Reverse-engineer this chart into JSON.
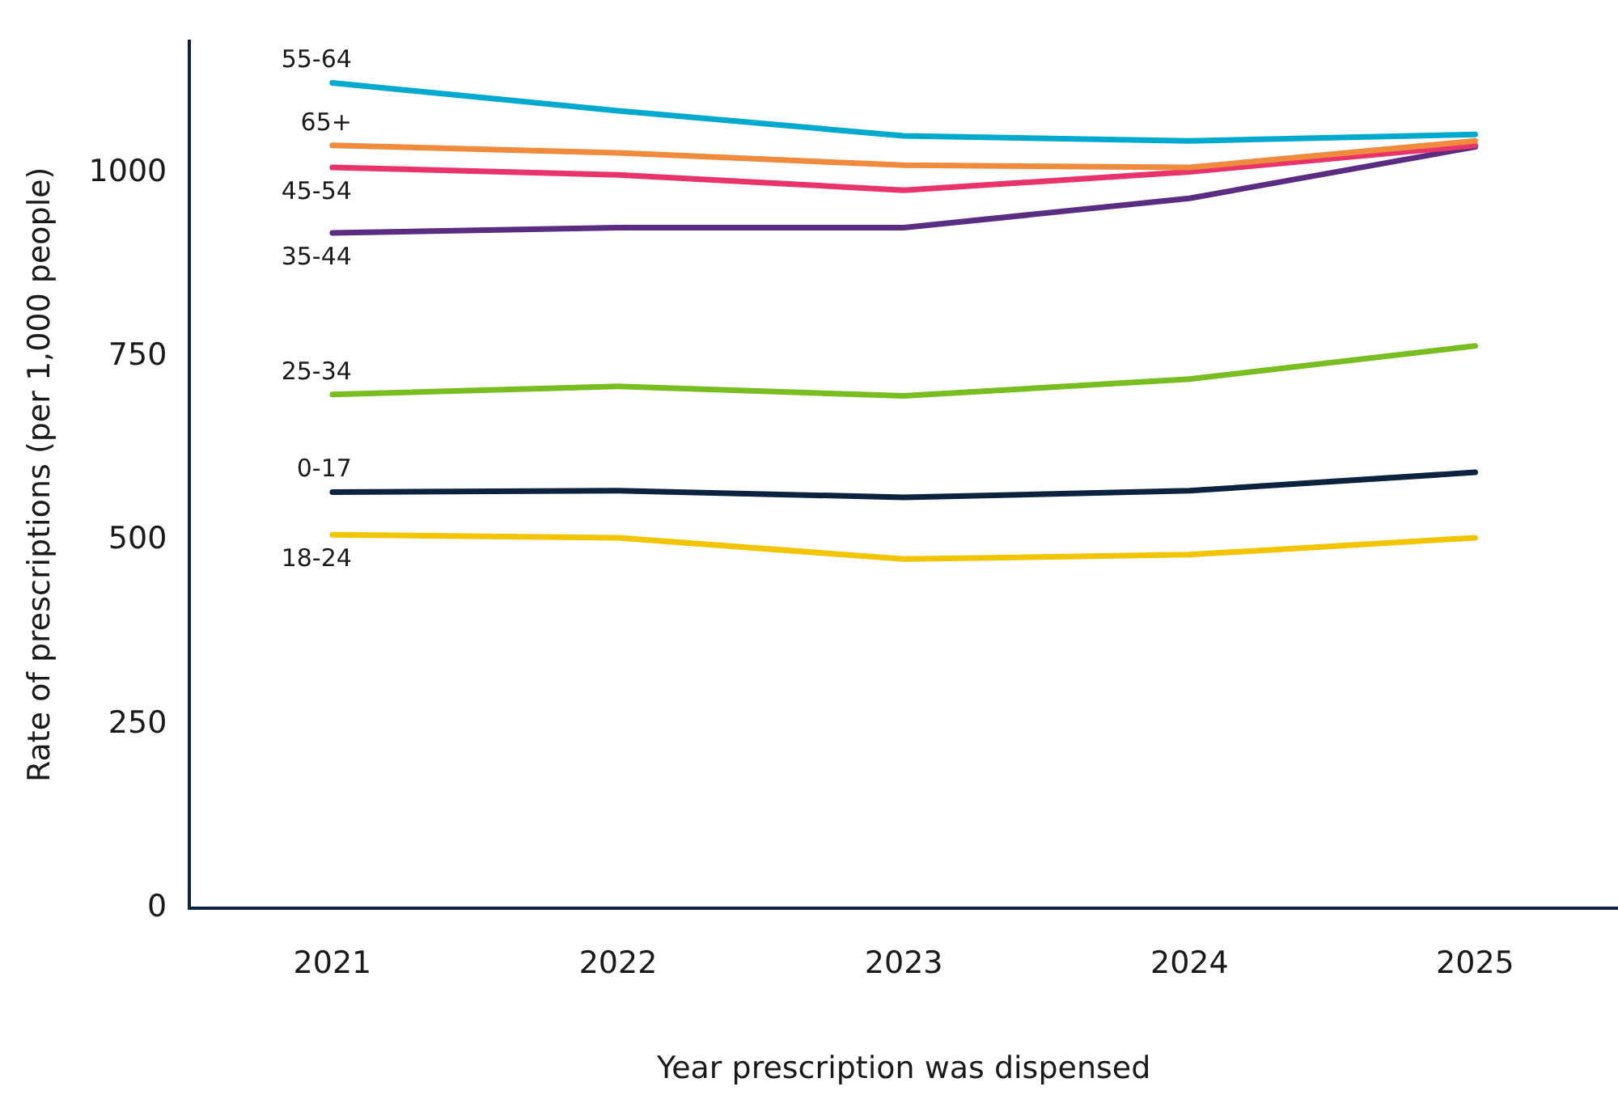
{
  "chart_data": {
    "type": "line",
    "xlabel": "Year prescription was dispensed",
    "ylabel": "Rate of prescriptions (per 1,000 people)",
    "categories": [
      "2021",
      "2022",
      "2023",
      "2024",
      "2025"
    ],
    "ylim": [
      0,
      1180
    ],
    "yticks": [
      0,
      250,
      500,
      750,
      1000
    ],
    "grid": false,
    "legend": false,
    "marker": "none",
    "line_style": "solid",
    "series": [
      {
        "name": "55-64",
        "color": "#00a9ce",
        "values": [
          1123,
          1085,
          1051,
          1044,
          1053
        ]
      },
      {
        "name": "65+",
        "color": "#f08a3c",
        "values": [
          1038,
          1028,
          1011,
          1008,
          1044
        ]
      },
      {
        "name": "45-54",
        "color": "#e8336b",
        "values": [
          1008,
          998,
          977,
          1002,
          1038
        ]
      },
      {
        "name": "35-44",
        "color": "#5a2d82",
        "values": [
          919,
          926,
          926,
          966,
          1036
        ]
      },
      {
        "name": "25-34",
        "color": "#78be20",
        "values": [
          699,
          710,
          697,
          720,
          765
        ]
      },
      {
        "name": "0-17",
        "color": "#0c2340",
        "values": [
          566,
          568,
          559,
          568,
          593
        ]
      },
      {
        "name": "18-24",
        "color": "#f2c500",
        "values": [
          508,
          504,
          475,
          481,
          504
        ]
      }
    ]
  }
}
